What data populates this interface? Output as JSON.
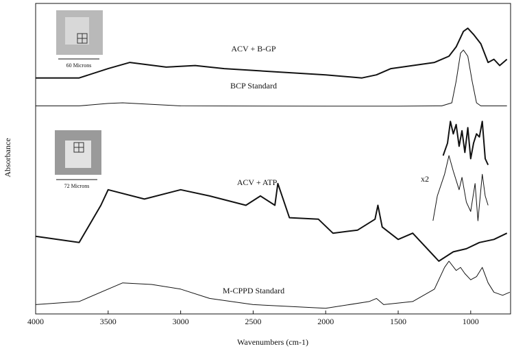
{
  "chart_data": {
    "type": "line",
    "y_label": "Absorbance",
    "x_label": "Wavenumbers (cm-1)",
    "xlim": [
      4000,
      725
    ],
    "xticks": [
      4000,
      3500,
      3000,
      2500,
      2000,
      1500,
      1000
    ],
    "ylim": [
      0,
      100
    ],
    "annotations": [
      "x2",
      "60 Microns",
      "72 Microns"
    ],
    "series": [
      {
        "name": "ACV + B-GP",
        "color": "#111111",
        "linewidth": 2,
        "x": [
          4000,
          3700,
          3500,
          3350,
          3100,
          2900,
          2700,
          2350,
          2000,
          1750,
          1650,
          1550,
          1400,
          1250,
          1150,
          1100,
          1050,
          1020,
          980,
          930,
          880,
          840,
          800,
          750
        ],
        "values": [
          76,
          76,
          79,
          81,
          79.5,
          80,
          79,
          78,
          77,
          76,
          77,
          79,
          80,
          81,
          83,
          86,
          91,
          92,
          90,
          87,
          81,
          82,
          80,
          82
        ]
      },
      {
        "name": "BCP Standard",
        "color": "#111111",
        "linewidth": 1,
        "x": [
          4000,
          3700,
          3500,
          3400,
          3200,
          3000,
          2000,
          1500,
          1200,
          1130,
          1100,
          1070,
          1050,
          1020,
          990,
          960,
          930,
          800,
          750
        ],
        "values": [
          67,
          67,
          67.8,
          68,
          67.5,
          67,
          66.9,
          66.9,
          67,
          68,
          75,
          84,
          85,
          83,
          75,
          68,
          67,
          67,
          67
        ]
      },
      {
        "name": "ACV + ATP",
        "color": "#111111",
        "linewidth": 2,
        "x": [
          4000,
          3700,
          3550,
          3500,
          3250,
          3000,
          2800,
          2550,
          2450,
          2350,
          2330,
          2250,
          2050,
          1950,
          1780,
          1660,
          1640,
          1610,
          1500,
          1400,
          1220,
          1120,
          1030,
          940,
          840,
          750
        ],
        "values": [
          25,
          23,
          35,
          40,
          37,
          40,
          38,
          35,
          38,
          35,
          42,
          31,
          30.5,
          26,
          27,
          30.5,
          35,
          28,
          24,
          26,
          17,
          20,
          21,
          23,
          24,
          26
        ]
      },
      {
        "name": "M-CPPD Standard",
        "color": "#111111",
        "linewidth": 1,
        "x": [
          4000,
          3700,
          3400,
          3200,
          3000,
          2800,
          2500,
          2000,
          1700,
          1650,
          1600,
          1400,
          1250,
          1180,
          1150,
          1100,
          1070,
          1040,
          1000,
          960,
          920,
          880,
          840,
          780,
          730
        ],
        "values": [
          3,
          4,
          10,
          9.5,
          8,
          5,
          3,
          1.8,
          4,
          5,
          3,
          4,
          8,
          15,
          17,
          14,
          15,
          13,
          11,
          12,
          15,
          10,
          7,
          6,
          7
        ]
      },
      {
        "color": "#111111",
        "linewidth": 2,
        "x": [
          1190,
          1160,
          1140,
          1120,
          1100,
          1080,
          1060,
          1040,
          1020,
          1000,
          980,
          960,
          940,
          920,
          900,
          880
        ],
        "values": [
          51,
          55,
          62,
          58,
          61,
          54,
          59,
          52,
          60,
          50,
          55,
          58,
          57,
          62,
          50,
          48
        ]
      },
      {
        "color": "#111111",
        "linewidth": 1,
        "x": [
          1260,
          1230,
          1180,
          1150,
          1120,
          1080,
          1060,
          1030,
          1000,
          970,
          950,
          920,
          900,
          880
        ],
        "values": [
          30,
          38,
          45,
          51,
          46,
          40,
          44,
          36,
          33,
          42,
          30,
          45,
          38,
          35
        ]
      }
    ]
  }
}
